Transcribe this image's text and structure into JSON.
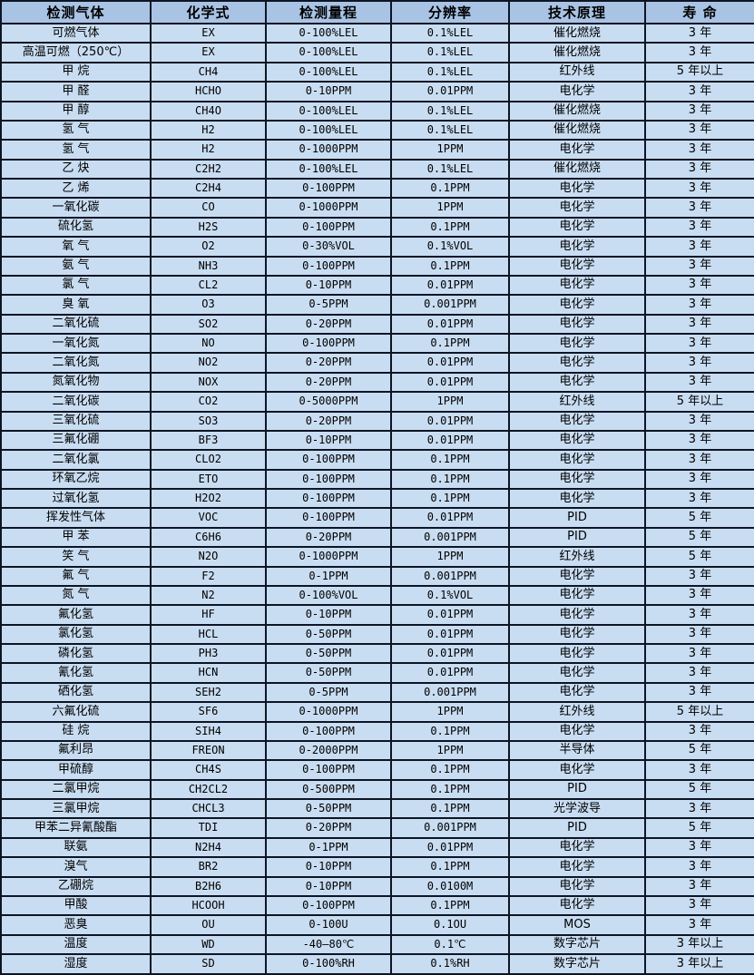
{
  "table": {
    "columns": [
      {
        "label": "检测气体"
      },
      {
        "label": "化学式"
      },
      {
        "label": "检测量程"
      },
      {
        "label": "分辨率"
      },
      {
        "label": "技术原理"
      },
      {
        "label": "寿 命"
      }
    ],
    "rows": [
      [
        "可燃气体",
        "EX",
        "0-100%LEL",
        "0.1%LEL",
        "催化燃烧",
        "3 年"
      ],
      [
        "高温可燃（250℃）",
        "EX",
        "0-100%LEL",
        "0.1%LEL",
        "催化燃烧",
        "3 年"
      ],
      [
        "甲 烷",
        "CH4",
        "0-100%LEL",
        "0.1%LEL",
        "红外线",
        "5 年以上"
      ],
      [
        "甲 醛",
        "HCHO",
        "0-10PPM",
        "0.01PPM",
        "电化学",
        "3 年"
      ],
      [
        "甲 醇",
        "CH4O",
        "0-100%LEL",
        "0.1%LEL",
        "催化燃烧",
        "3 年"
      ],
      [
        "氢 气",
        "H2",
        "0-100%LEL",
        "0.1%LEL",
        "催化燃烧",
        "3 年"
      ],
      [
        "氢 气",
        "H2",
        "0-1000PPM",
        "1PPM",
        "电化学",
        "3 年"
      ],
      [
        "乙 炔",
        "C2H2",
        "0-100%LEL",
        "0.1%LEL",
        "催化燃烧",
        "3 年"
      ],
      [
        "乙 烯",
        "C2H4",
        "0-100PPM",
        "0.1PPM",
        "电化学",
        "3 年"
      ],
      [
        "一氧化碳",
        "CO",
        "0-1000PPM",
        "1PPM",
        "电化学",
        "3 年"
      ],
      [
        "硫化氢",
        "H2S",
        "0-100PPM",
        "0.1PPM",
        "电化学",
        "3 年"
      ],
      [
        "氧 气",
        "O2",
        "0-30%VOL",
        "0.1%VOL",
        "电化学",
        "3 年"
      ],
      [
        "氨 气",
        "NH3",
        "0-100PPM",
        "0.1PPM",
        "电化学",
        "3 年"
      ],
      [
        "氯 气",
        "CL2",
        "0-10PPM",
        "0.01PPM",
        "电化学",
        "3 年"
      ],
      [
        "臭 氧",
        "O3",
        "0-5PPM",
        "0.001PPM",
        "电化学",
        "3 年"
      ],
      [
        "二氧化硫",
        "SO2",
        "0-20PPM",
        "0.01PPM",
        "电化学",
        "3 年"
      ],
      [
        "一氧化氮",
        "NO",
        "0-100PPM",
        "0.1PPM",
        "电化学",
        "3 年"
      ],
      [
        "二氧化氮",
        "NO2",
        "0-20PPM",
        "0.01PPM",
        "电化学",
        "3 年"
      ],
      [
        "氮氧化物",
        "NOX",
        "0-20PPM",
        "0.01PPM",
        "电化学",
        "3 年"
      ],
      [
        "二氧化碳",
        "CO2",
        "0-5000PPM",
        "1PPM",
        "红外线",
        "5 年以上"
      ],
      [
        "三氧化硫",
        "SO3",
        "0-20PPM",
        "0.01PPM",
        "电化学",
        "3 年"
      ],
      [
        "三氟化硼",
        "BF3",
        "0-10PPM",
        "0.01PPM",
        "电化学",
        "3 年"
      ],
      [
        "二氧化氯",
        "CLO2",
        "0-100PPM",
        "0.1PPM",
        "电化学",
        "3 年"
      ],
      [
        "环氧乙烷",
        "ETO",
        "0-100PPM",
        "0.1PPM",
        "电化学",
        "3 年"
      ],
      [
        "过氧化氢",
        "H2O2",
        "0-100PPM",
        "0.1PPM",
        "电化学",
        "3 年"
      ],
      [
        "挥发性气体",
        "VOC",
        "0-100PPM",
        "0.01PPM",
        "PID",
        "5 年"
      ],
      [
        "甲 苯",
        "C6H6",
        "0-20PPM",
        "0.001PPM",
        "PID",
        "5 年"
      ],
      [
        "笑 气",
        "N2O",
        "0-1000PPM",
        "1PPM",
        "红外线",
        "5 年"
      ],
      [
        "氟 气",
        "F2",
        "0-1PPM",
        "0.001PPM",
        "电化学",
        "3 年"
      ],
      [
        "氮 气",
        "N2",
        "0-100%VOL",
        "0.1%VOL",
        "电化学",
        "3 年"
      ],
      [
        "氟化氢",
        "HF",
        "0-10PPM",
        "0.01PPM",
        "电化学",
        "3 年"
      ],
      [
        "氯化氢",
        "HCL",
        "0-50PPM",
        "0.01PPM",
        "电化学",
        "3 年"
      ],
      [
        "磷化氢",
        "PH3",
        "0-50PPM",
        "0.01PPM",
        "电化学",
        "3 年"
      ],
      [
        "氰化氢",
        "HCN",
        "0-50PPM",
        "0.01PPM",
        "电化学",
        "3 年"
      ],
      [
        "硒化氢",
        "SEH2",
        "0-5PPM",
        "0.001PPM",
        "电化学",
        "3 年"
      ],
      [
        "六氟化硫",
        "SF6",
        "0-1000PPM",
        "1PPM",
        "红外线",
        "5 年以上"
      ],
      [
        "硅 烷",
        "SIH4",
        "0-100PPM",
        "0.1PPM",
        "电化学",
        "3 年"
      ],
      [
        "氟利昂",
        "FREON",
        "0-2000PPM",
        "1PPM",
        "半导体",
        "5 年"
      ],
      [
        "甲硫醇",
        "CH4S",
        "0-100PPM",
        "0.1PPM",
        "电化学",
        "3 年"
      ],
      [
        "二氯甲烷",
        "CH2CL2",
        "0-500PPM",
        "0.1PPM",
        "PID",
        "5 年"
      ],
      [
        "三氯甲烷",
        "CHCL3",
        "0-50PPM",
        "0.1PPM",
        "光学波导",
        "3 年"
      ],
      [
        "甲苯二异氰酸酯",
        "TDI",
        "0-20PPM",
        "0.001PPM",
        "PID",
        "5 年"
      ],
      [
        "联氨",
        "N2H4",
        "0-1PPM",
        "0.01PPM",
        "电化学",
        "3 年"
      ],
      [
        "溴气",
        "BR2",
        "0-10PPM",
        "0.1PPM",
        "电化学",
        "3 年"
      ],
      [
        "乙硼烷",
        "B2H6",
        "0-10PPM",
        "0.0100M",
        "电化学",
        "3 年"
      ],
      [
        "甲酸",
        "HCOOH",
        "0-100PPM",
        "0.1PPM",
        "电化学",
        "3 年"
      ],
      [
        "恶臭",
        "OU",
        "0-100U",
        "0.1OU",
        "MOS",
        "3 年"
      ],
      [
        "温度",
        "WD",
        "-40—80℃",
        "0.1℃",
        "数字芯片",
        "3 年以上"
      ],
      [
        "湿度",
        "SD",
        "0-100%RH",
        "0.1%RH",
        "数字芯片",
        "3 年以上"
      ]
    ]
  },
  "colors": {
    "header_bg": "#a9c3e4",
    "row_bg": "#c9ddf2",
    "border": "#0d1524",
    "text": "#000000"
  }
}
